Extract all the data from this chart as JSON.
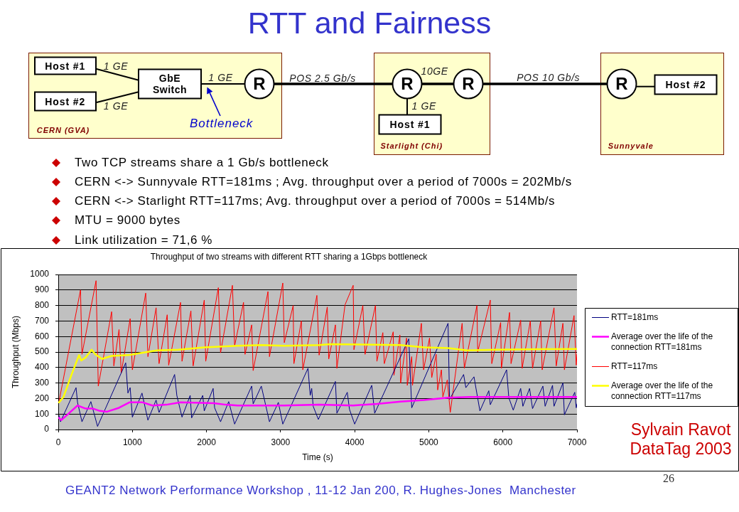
{
  "chart_data": [
    {
      "type": "other",
      "title": "RTT and Fairness",
      "annotations": [
        "Host #1",
        "1 GE",
        "Host #2",
        "1 GE",
        "GbE Switch",
        "1 GE",
        "R",
        "POS 2.5 Gb/s",
        "Bottleneck",
        "CERN (GVA)",
        "R",
        "10GE",
        "R",
        "1 GE",
        "Host #1",
        "Starlight (Chi)",
        "POS 10 Gb/s",
        "R",
        "Host #2",
        "Sunnyvale"
      ]
    },
    {
      "type": "other",
      "annotations": [
        "Two TCP streams share a 1 Gb/s bottleneck",
        "CERN <-> Sunnyvale RTT=181ms ; Avg. throughput over a period of 7000s = 202Mb/s",
        "CERN <-> Starlight RTT=117ms; Avg. throughput over a period of 7000s = 514Mb/s",
        "MTU = 9000 bytes",
        "Link utilization = 71,6 %"
      ]
    },
    {
      "type": "line",
      "title": "Throughput of two streams with different RTT sharing a 1Gbps bottleneck",
      "xlabel": "Time (s)",
      "ylabel": "Throughput (Mbps)",
      "xlim": [
        0,
        7000
      ],
      "xticks": [
        0,
        1000,
        2000,
        3000,
        4000,
        5000,
        6000,
        7000
      ],
      "ylim": [
        0,
        1000
      ],
      "yticks": [
        0,
        100,
        200,
        300,
        400,
        500,
        600,
        700,
        800,
        900,
        1000
      ],
      "grid": "y",
      "legend": "right",
      "marker": "none",
      "annotations": [
        "Sylvain Ravot DataTag 2003"
      ],
      "series": [
        {
          "name": "RTT=181ms",
          "color": "#000080",
          "x": [
            10,
            30,
            240,
            260,
            320,
            440,
            530,
            910,
            940,
            970,
            1000,
            1130,
            1210,
            1320,
            1360,
            1570,
            1600,
            1670,
            1780,
            1800,
            1950,
            1970,
            2090,
            2110,
            2190,
            2300,
            2380,
            2610,
            2630,
            2740,
            2850,
            2970,
            3030,
            3370,
            3400,
            3420,
            3440,
            3510,
            3740,
            3760,
            3900,
            3930,
            4000,
            4230,
            4270,
            4730,
            4770,
            5260,
            5280,
            5470,
            5500,
            5610,
            5690,
            5810,
            5830,
            6050,
            6080,
            6140,
            6240,
            6270,
            6360,
            6400,
            6540,
            6570,
            6670,
            6690,
            6810,
            6830,
            6970,
            6990,
            7000
          ],
          "values": [
            90,
            50,
            270,
            175,
            50,
            180,
            20,
            430,
            235,
            270,
            80,
            235,
            60,
            190,
            110,
            355,
            220,
            80,
            220,
            75,
            220,
            120,
            265,
            140,
            50,
            180,
            35,
            280,
            165,
            280,
            50,
            175,
            35,
            395,
            220,
            265,
            150,
            65,
            310,
            105,
            240,
            130,
            35,
            285,
            105,
            585,
            140,
            685,
            195,
            355,
            270,
            340,
            120,
            250,
            160,
            385,
            205,
            125,
            265,
            150,
            265,
            135,
            280,
            150,
            285,
            150,
            300,
            95,
            240,
            140,
            165
          ]
        },
        {
          "name": "Average over the life of the connection RTT=181ms",
          "color": "#ff00ff",
          "x": [
            10,
            40,
            260,
            370,
            470,
            560,
            660,
            820,
            960,
            1140,
            1270,
            1460,
            1650,
            2100,
            2260,
            2420,
            3050,
            3520,
            3980,
            4300,
            4620,
            4940,
            5260,
            5550,
            7000
          ],
          "values": [
            75,
            60,
            155,
            135,
            135,
            120,
            115,
            140,
            175,
            175,
            155,
            160,
            175,
            170,
            160,
            155,
            155,
            160,
            155,
            165,
            180,
            190,
            205,
            210,
            210
          ]
        },
        {
          "name": "RTT=117ms",
          "color": "#ff0000",
          "x": [
            10,
            300,
            320,
            510,
            540,
            720,
            750,
            820,
            850,
            970,
            1000,
            1180,
            1210,
            1320,
            1360,
            1470,
            1490,
            1650,
            1670,
            1790,
            1820,
            1970,
            1990,
            2160,
            2190,
            2350,
            2380,
            2500,
            2520,
            2610,
            2630,
            2830,
            2850,
            3030,
            3050,
            3170,
            3180,
            3280,
            3300,
            3490,
            3520,
            3630,
            3650,
            3740,
            3760,
            3870,
            3980,
            3990,
            4110,
            4140,
            4280,
            4300,
            4380,
            4400,
            4520,
            4530,
            4610,
            4620,
            4700,
            4710,
            4770,
            4780,
            4900,
            4930,
            5010,
            5040,
            5100,
            5120,
            5170,
            5190,
            5250,
            5290,
            5450,
            5480,
            5650,
            5660,
            5830,
            5850,
            5970,
            5980,
            6090,
            6110,
            6240,
            6260,
            6370,
            6400,
            6510,
            6530,
            6690,
            6720,
            6810,
            6830,
            6960,
            6990,
            7000
          ],
          "values": [
            180,
            900,
            485,
            960,
            280,
            760,
            410,
            645,
            365,
            715,
            385,
            880,
            470,
            785,
            425,
            740,
            415,
            820,
            440,
            765,
            410,
            835,
            440,
            915,
            495,
            930,
            540,
            820,
            485,
            675,
            380,
            890,
            470,
            945,
            560,
            800,
            425,
            700,
            385,
            865,
            480,
            790,
            455,
            675,
            395,
            805,
            930,
            515,
            800,
            485,
            800,
            440,
            625,
            425,
            630,
            350,
            610,
            300,
            590,
            285,
            470,
            285,
            685,
            385,
            590,
            335,
            485,
            255,
            385,
            210,
            320,
            110,
            685,
            395,
            800,
            500,
            835,
            425,
            690,
            395,
            755,
            425,
            705,
            395,
            700,
            395,
            700,
            385,
            785,
            410,
            685,
            385,
            735,
            415,
            485
          ]
        },
        {
          "name": "Average over the life of the connection RTT=117ms",
          "color": "#ffff00",
          "x": [
            10,
            70,
            180,
            280,
            310,
            370,
            450,
            500,
            590,
            720,
            950,
            1140,
            1330,
            1620,
            1970,
            2420,
            2740,
            3050,
            3520,
            3670,
            4620,
            4940,
            5260,
            5520,
            5900,
            7000
          ],
          "values": [
            175,
            210,
            355,
            480,
            445,
            465,
            515,
            485,
            455,
            475,
            480,
            495,
            510,
            515,
            530,
            540,
            545,
            540,
            545,
            550,
            545,
            530,
            525,
            510,
            515,
            520
          ]
        }
      ]
    },
    {
      "type": "other",
      "annotations": [
        "GEANT2 Network Performance Workshop , 11-12 Jan 200, R. Hughes-Jones  Manchester",
        "26"
      ]
    }
  ]
}
